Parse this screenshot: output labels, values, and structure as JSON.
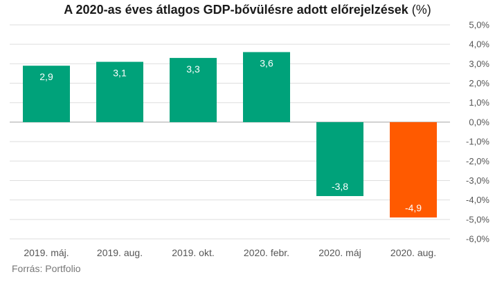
{
  "chart_data": {
    "type": "bar",
    "title": "A 2020-as éves átlagos GDP-bővülésre adott előrejelzések",
    "title_unit": "(%)",
    "xlabel": "",
    "ylabel": "",
    "categories": [
      "2019. máj.",
      "2019. aug.",
      "2019. okt.",
      "2020. febr.",
      "2020. máj",
      "2020. aug."
    ],
    "values": [
      2.9,
      3.1,
      3.3,
      3.6,
      -3.8,
      -4.9
    ],
    "value_labels": [
      "2,9",
      "3,1",
      "3,3",
      "3,6",
      "-3,8",
      "-4,9"
    ],
    "bar_colors": [
      "#00a27a",
      "#00a27a",
      "#00a27a",
      "#00a27a",
      "#00a27a",
      "#ff5a00"
    ],
    "ylim": [
      -6,
      5
    ],
    "yticks": [
      5,
      4,
      3,
      2,
      1,
      0,
      -1,
      -2,
      -3,
      -4,
      -5,
      -6
    ],
    "ytick_labels": [
      "5,0%",
      "4,0%",
      "3,0%",
      "2,0%",
      "1,0%",
      "0,0%",
      "-1,0%",
      "-2,0%",
      "-3,0%",
      "-4,0%",
      "-5,0%",
      "-6,0%"
    ],
    "y_axis_position": "right",
    "grid": true,
    "colors": {
      "grid": "#dedede",
      "zero_line": "#b5b5b5",
      "text": "#555555"
    }
  },
  "source": "Forrás: Portfolio"
}
